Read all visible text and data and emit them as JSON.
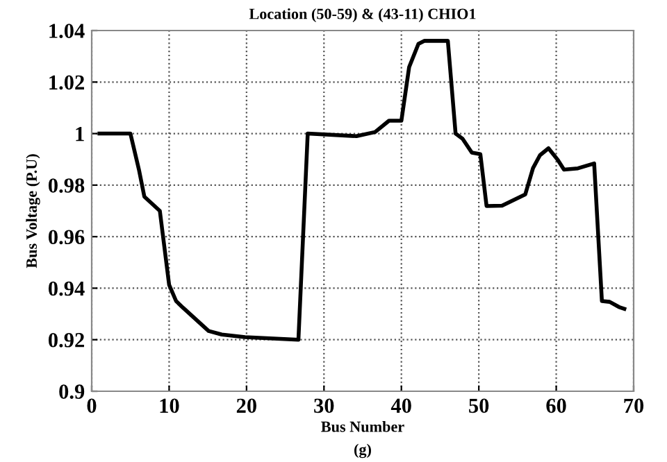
{
  "chart_data": {
    "type": "line",
    "title": "Location (50-59) & (43-11) CHIO1",
    "xlabel": "Bus Number",
    "ylabel": "Bus Voltage (P.U)",
    "annotations": [
      "(g)"
    ],
    "series": [
      {
        "color": "#000000",
        "x": [
          1,
          5,
          6.1,
          6.8,
          8.8,
          10,
          10.9,
          11.8,
          15.1,
          16.8,
          19.8,
          26.7,
          27.9,
          34.2,
          36.6,
          38.4,
          40,
          41,
          42.2,
          43,
          46,
          47,
          47.9,
          49.1,
          50.2,
          51,
          53,
          56,
          57,
          57.9,
          59,
          60.2,
          61,
          62.8,
          64.9,
          65.9,
          66.9,
          68.1,
          68.8
        ],
        "values": [
          1.0,
          1.0,
          0.986,
          0.9755,
          0.97,
          0.9413,
          0.935,
          0.9324,
          0.9234,
          0.922,
          0.921,
          0.92,
          1.0,
          0.999,
          1.0006,
          1.005,
          1.005,
          1.0258,
          1.0348,
          1.036,
          1.036,
          1.0,
          0.998,
          0.9926,
          0.992,
          0.9719,
          0.972,
          0.9764,
          0.9866,
          0.9916,
          0.9943,
          0.9898,
          0.986,
          0.9865,
          0.9884,
          0.935,
          0.9347,
          0.9327,
          0.932
        ]
      }
    ],
    "xlim": [
      0,
      70
    ],
    "ylim": [
      0.9,
      1.04
    ],
    "xticks": [
      0,
      10,
      20,
      30,
      40,
      50,
      60,
      70
    ],
    "yticks": [
      0.9,
      0.92,
      0.94,
      0.96,
      0.98,
      1,
      1.02,
      1.04
    ],
    "grid": true,
    "marker": "none",
    "line_style": "solid"
  }
}
